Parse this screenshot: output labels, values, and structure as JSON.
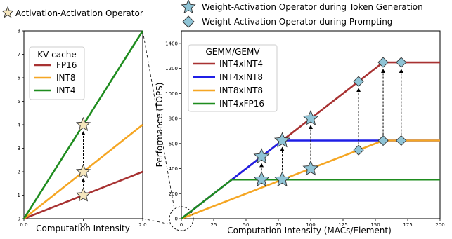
{
  "top_legend": {
    "activation_activation": "Activation-Activation Operator",
    "weight_activation_token": "Weight-Activation Operator during Token Generation",
    "weight_activation_prompt": "Weight-Activation Operator during Prompting",
    "colors": {
      "star_cream": "#f5e6bd",
      "star_blue": "#8fc4d6",
      "diamond_blue": "#8fc4d6"
    }
  },
  "chart_data": [
    {
      "type": "line",
      "xlabel": "Computation Intensity",
      "ylabel": "",
      "xlim": [
        0,
        2
      ],
      "ylim": [
        0,
        8
      ],
      "x_ticks": [
        0.0,
        1.0,
        2.0
      ],
      "x_tick_labels": [
        "0.0",
        "1.0",
        "2.0"
      ],
      "y_ticks": [
        0,
        1,
        2,
        3,
        4,
        5,
        6,
        7,
        8
      ],
      "y_tick_labels": [
        "0",
        "1",
        "2",
        "3",
        "4",
        "5",
        "6",
        "7",
        "8"
      ],
      "legend_title": "KV cache",
      "legend_position": "upper-left",
      "series": [
        {
          "name": "FP16",
          "color": "#a83232",
          "x": [
            0,
            2
          ],
          "y": [
            0,
            2
          ]
        },
        {
          "name": "INT8",
          "color": "#f5a623",
          "x": [
            0,
            2
          ],
          "y": [
            0,
            4
          ]
        },
        {
          "name": "INT4",
          "color": "#1e8c1e",
          "x": [
            0,
            2
          ],
          "y": [
            0,
            8
          ]
        }
      ],
      "markers": [
        {
          "shape": "star",
          "x": 1.0,
          "y": 1.0
        },
        {
          "shape": "star",
          "x": 1.0,
          "y": 2.0
        },
        {
          "shape": "star",
          "x": 1.0,
          "y": 4.0
        }
      ],
      "arrows": [
        {
          "x": 1.0,
          "from": 1.0,
          "to": 2.0
        },
        {
          "x": 1.0,
          "from": 2.0,
          "to": 4.0
        }
      ]
    },
    {
      "type": "line",
      "xlabel": "Computation Intensity (MACs/Element)",
      "ylabel": "Performance (TOPS)",
      "xlim": [
        0,
        200
      ],
      "ylim": [
        0,
        1500
      ],
      "x_ticks": [
        0,
        25,
        50,
        75,
        100,
        125,
        150,
        175,
        200
      ],
      "x_tick_labels": [
        "0",
        "25",
        "50",
        "75",
        "100",
        "125",
        "150",
        "175",
        "200"
      ],
      "y_ticks": [
        0,
        200,
        400,
        600,
        800,
        1000,
        1200,
        1400
      ],
      "y_tick_labels": [
        "0",
        "200",
        "400",
        "600",
        "800",
        "1000",
        "1200",
        "1400"
      ],
      "legend_title": "GEMM/GEMV",
      "legend_position": "upper-left",
      "series": [
        {
          "name": "INT4xINT4",
          "color": "#a83232",
          "x": [
            0,
            156,
            200
          ],
          "y": [
            0,
            1248,
            1248
          ]
        },
        {
          "name": "INT4xINT8",
          "color": "#1f1fe6",
          "x": [
            0,
            78,
            200
          ],
          "y": [
            0,
            624,
            624
          ]
        },
        {
          "name": "INT8xINT8",
          "color": "#f5a623",
          "x": [
            0,
            156,
            200
          ],
          "y": [
            0,
            624,
            624
          ]
        },
        {
          "name": "INT4xFP16",
          "color": "#1e8c1e",
          "x": [
            0,
            39,
            200
          ],
          "y": [
            0,
            312,
            312
          ]
        }
      ],
      "token_markers": [
        {
          "x": 62,
          "y": 496
        },
        {
          "x": 62,
          "y": 312
        },
        {
          "x": 78,
          "y": 624
        },
        {
          "x": 78,
          "y": 312
        },
        {
          "x": 100,
          "y": 800
        },
        {
          "x": 100,
          "y": 400
        }
      ],
      "prompt_markers": [
        {
          "x": 137,
          "y": 1096
        },
        {
          "x": 137,
          "y": 548
        },
        {
          "x": 156,
          "y": 1248
        },
        {
          "x": 156,
          "y": 624
        },
        {
          "x": 170,
          "y": 1248
        },
        {
          "x": 170,
          "y": 624
        }
      ],
      "arrows": [
        {
          "x": 62,
          "from": 312,
          "to": 496
        },
        {
          "x": 78,
          "from": 312,
          "to": 624
        },
        {
          "x": 100,
          "from": 400,
          "to": 800
        },
        {
          "x": 137,
          "from": 548,
          "to": 1096
        },
        {
          "x": 156,
          "from": 624,
          "to": 1248
        },
        {
          "x": 170,
          "from": 624,
          "to": 1248
        }
      ]
    }
  ]
}
